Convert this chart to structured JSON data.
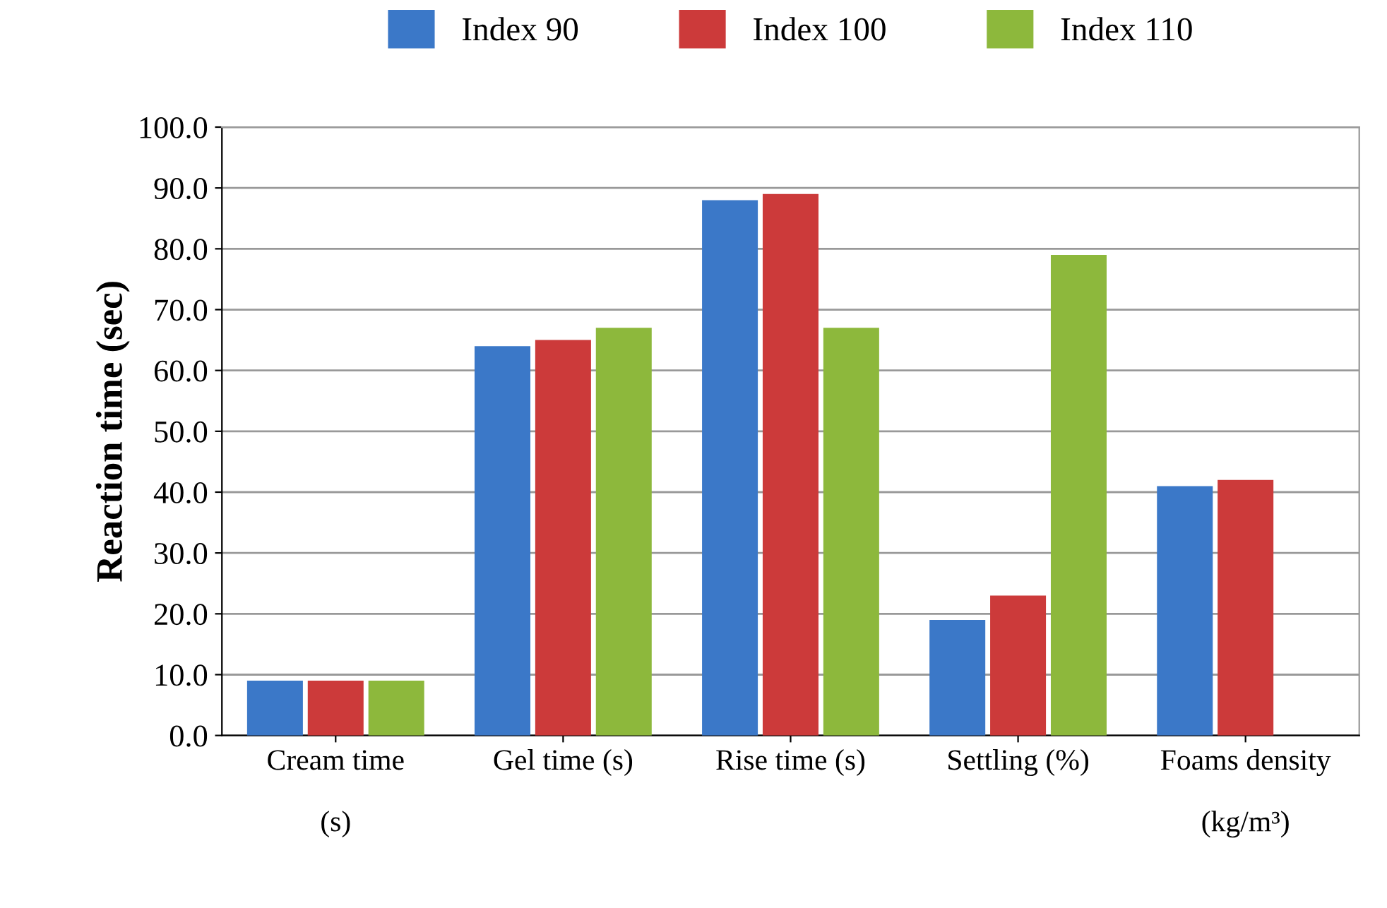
{
  "chart_data": {
    "type": "bar",
    "ylabel": "Reaction time (sec)",
    "categories": [
      "Cream time\n\n(s)",
      "Gel time (s)",
      "Rise time (s)",
      "Settling (%)",
      "Foams density\n\n(kg/m³)"
    ],
    "series": [
      {
        "name": "Index 90",
        "color": "#3b78c8",
        "values": [
          9,
          64,
          88,
          19,
          41
        ]
      },
      {
        "name": "Index 100",
        "color": "#cc3a3a",
        "values": [
          9,
          65,
          89,
          23,
          42
        ]
      },
      {
        "name": "Index 110",
        "color": "#8db83c",
        "values": [
          9,
          67,
          67,
          79,
          0
        ]
      }
    ],
    "ylim": [
      0,
      100
    ],
    "yticks": [
      {
        "value": 0,
        "label": "0.0"
      },
      {
        "value": 10,
        "label": "10.0"
      },
      {
        "value": 20,
        "label": "20.0"
      },
      {
        "value": 30,
        "label": "30.0"
      },
      {
        "value": 40,
        "label": "40.0"
      },
      {
        "value": 50,
        "label": "50.0"
      },
      {
        "value": 60,
        "label": "60.0"
      },
      {
        "value": 70,
        "label": "70.0"
      },
      {
        "value": 80,
        "label": "80.0"
      },
      {
        "value": 90,
        "label": "90.0"
      },
      {
        "value": 100,
        "label": "100.0"
      }
    ],
    "grid": "y",
    "legend": "top"
  }
}
